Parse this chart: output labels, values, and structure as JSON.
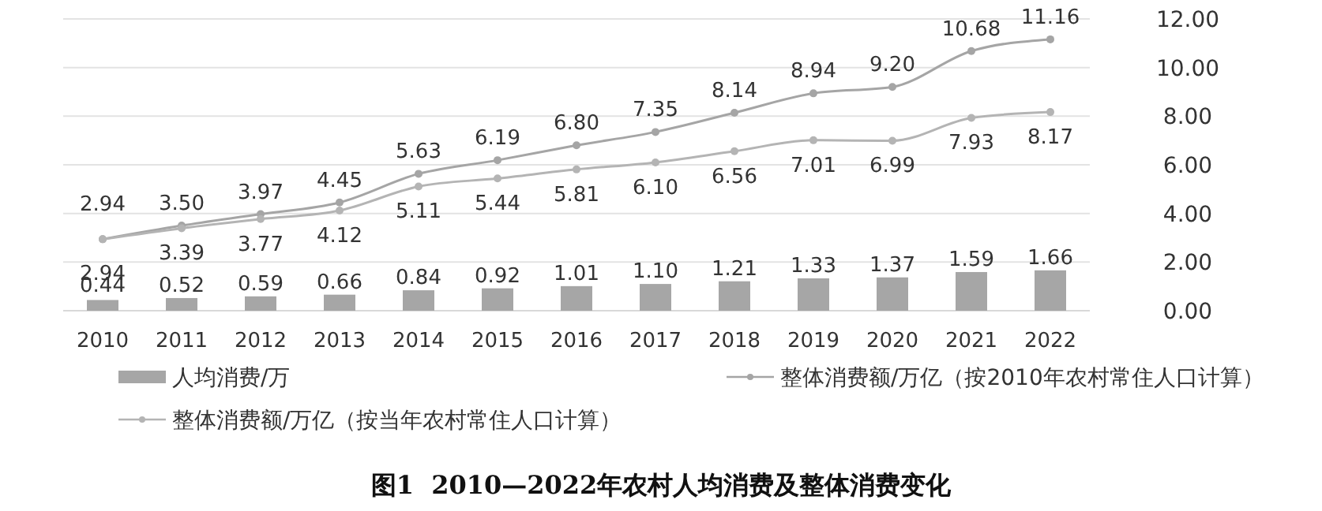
{
  "chart_data": {
    "type": "bar",
    "title": "图1  2010—2022年农村人均消费及整体消费变化",
    "categories": [
      "2010",
      "2011",
      "2012",
      "2013",
      "2014",
      "2015",
      "2016",
      "2017",
      "2018",
      "2019",
      "2020",
      "2021",
      "2022"
    ],
    "series": [
      {
        "name": "人均消费/万",
        "color": "#a6a6a6",
        "values": [
          0.44,
          0.52,
          0.59,
          0.66,
          0.84,
          0.92,
          1.01,
          1.1,
          1.21,
          1.33,
          1.37,
          1.59,
          1.66
        ],
        "value_labels": [
          "0.44",
          "0.52",
          "0.59",
          "0.66",
          "0.84",
          "0.92",
          "1.01",
          "1.10",
          "1.21",
          "1.33",
          "1.37",
          "1.59",
          "1.66"
        ]
      },
      {
        "name": "整体消费额/万亿（按2010年农村常住人口计算）",
        "type": "line",
        "color": "#a5a5a5",
        "values": [
          2.94,
          3.5,
          3.97,
          4.45,
          5.63,
          6.19,
          6.8,
          7.35,
          8.14,
          8.94,
          9.2,
          10.68,
          11.16
        ],
        "value_labels": [
          "2.94",
          "3.50",
          "3.97",
          "4.45",
          "5.63",
          "6.19",
          "6.80",
          "7.35",
          "8.14",
          "8.94",
          "9.20",
          "10.68",
          "11.16"
        ]
      },
      {
        "name": "整体消费额/万亿（按当年农村常住人口计算）",
        "type": "line",
        "color": "#b4b4b4",
        "values": [
          2.94,
          3.39,
          3.77,
          4.12,
          5.11,
          5.44,
          5.81,
          6.1,
          6.56,
          7.01,
          6.99,
          7.93,
          8.17
        ],
        "value_labels": [
          "2.94",
          "3.39",
          "3.77",
          "4.12",
          "5.11",
          "5.44",
          "5.81",
          "6.10",
          "6.56",
          "7.01",
          "6.99",
          "7.93",
          "8.17"
        ]
      }
    ],
    "ylim": [
      0,
      12
    ],
    "yticks": [
      {
        "value": 0,
        "label": "0.00"
      },
      {
        "value": 2,
        "label": "2.00"
      },
      {
        "value": 4,
        "label": "4.00"
      },
      {
        "value": 6,
        "label": "6.00"
      },
      {
        "value": 8,
        "label": "8.00"
      },
      {
        "value": 10,
        "label": "10.00"
      },
      {
        "value": 12,
        "label": "12.00"
      }
    ],
    "grid": "y",
    "legend": "bottom",
    "marker": "circle",
    "line_style": "solid"
  }
}
